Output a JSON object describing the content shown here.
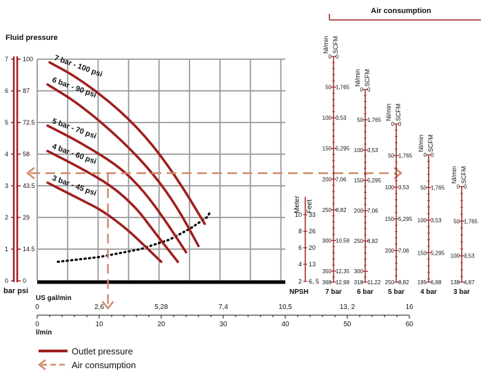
{
  "colors": {
    "curve": "#a01e1e",
    "air": "#d08a6e",
    "text": "#111111",
    "grid": "#9a9a9a",
    "npsh": "#000000"
  },
  "header": {
    "air_consumption": "Air consumption",
    "fluid_pressure": "Fluid pressure"
  },
  "axes": {
    "bar_psi": "bar psi",
    "us_gal_label": "US gal/min",
    "lmin_label": "l/min",
    "npsh": "NPSH",
    "meter": "Meter",
    "feet": "Feet"
  },
  "legend": {
    "outlet": "Outlet pressure",
    "air": "Air consumption"
  },
  "chart_data": {
    "type": "line",
    "title": "Fluid pressure",
    "xlabel": "l/min",
    "x_secondary_label": "US gal/min",
    "ylabel": "bar psi",
    "xlim": [
      0,
      60
    ],
    "ylim_bar": [
      0,
      7
    ],
    "x_ticks_lmin": [
      "0",
      "10",
      "20",
      "30",
      "40",
      "50",
      "60"
    ],
    "x_ticks_usgal": [
      "0",
      "2,6",
      "5,28",
      "7,4",
      "10,5",
      "13, 2",
      "16"
    ],
    "y_ticks_bar": [
      "0",
      "1",
      "2",
      "3",
      "4",
      "5",
      "6",
      "7"
    ],
    "y_ticks_psi": [
      "0",
      "14.5",
      "29",
      "43.5",
      "58",
      "72.5",
      "87",
      "100"
    ],
    "series": [
      {
        "name": "7 bar - 100 psi",
        "x": [
          3,
          10,
          20,
          28,
          35,
          40.5
        ],
        "y": [
          6.9,
          6.4,
          5.4,
          4.3,
          3.0,
          1.8
        ]
      },
      {
        "name": "6 bar - 90 psi",
        "x": [
          2.5,
          10,
          20,
          28,
          34,
          39
        ],
        "y": [
          6.2,
          5.6,
          4.5,
          3.4,
          2.3,
          1.1
        ]
      },
      {
        "name": "5 bar - 70 psi",
        "x": [
          2.5,
          10,
          20,
          26,
          31,
          36
        ],
        "y": [
          4.9,
          4.4,
          3.6,
          2.8,
          1.9,
          0.9
        ]
      },
      {
        "name": "4 bar - 60 psi",
        "x": [
          2.5,
          10,
          18,
          24,
          28,
          34
        ],
        "y": [
          4.1,
          3.6,
          3.0,
          2.3,
          1.6,
          0.6
        ]
      },
      {
        "name": "3 bar - 45 psi",
        "x": [
          2.5,
          10,
          16,
          22,
          26,
          30
        ],
        "y": [
          3.1,
          2.6,
          2.2,
          1.6,
          1.1,
          0.6
        ]
      }
    ],
    "npsh_curve": {
      "name": "NPSH",
      "x": [
        5,
        15,
        25,
        32,
        37,
        41,
        42
      ],
      "y": [
        0.6,
        0.75,
        1.0,
        1.3,
        1.65,
        2.0,
        2.2
      ]
    },
    "air_arrow": {
      "from_y_bar": 3.4,
      "down_to_x_lmin": 17.1,
      "label": "Air consumption"
    },
    "npsh_axis": {
      "meter": [
        "2",
        "4",
        "6",
        "8",
        "10"
      ],
      "feet": [
        "6, 5",
        "13",
        "20",
        "26",
        "33"
      ]
    },
    "air_scales": [
      {
        "label": "7 bar",
        "nl": [
          "0",
          "50",
          "100",
          "150",
          "200",
          "250",
          "300",
          "350",
          "368"
        ],
        "scfm": [
          "0",
          "1,765",
          "3,53",
          "5,295",
          "7,06",
          "8,82",
          "10,58",
          "12,35",
          "12,98"
        ]
      },
      {
        "label": "6 bar",
        "nl": [
          "0",
          "50",
          "100",
          "150",
          "200",
          "250",
          "300",
          "318"
        ],
        "scfm": [
          "0",
          "1,765",
          "3,53",
          "5,295",
          "7,06",
          "8,82",
          "",
          "11,22"
        ]
      },
      {
        "label": "5 bar",
        "nl": [
          "0",
          "50",
          "100",
          "150",
          "200",
          "250"
        ],
        "scfm": [
          "0",
          "1,765",
          "3,53",
          "5,295",
          "7,06",
          "8,82"
        ]
      },
      {
        "label": "4 bar",
        "nl": [
          "0",
          "50",
          "100",
          "150",
          "195"
        ],
        "scfm": [
          "0",
          "1,765",
          "3,53",
          "5,295",
          "6,88"
        ]
      },
      {
        "label": "3 bar",
        "nl": [
          "0",
          "50",
          "100",
          "138"
        ],
        "scfm": [
          "0",
          "1,765",
          "3,53",
          "4,87"
        ]
      }
    ],
    "air_unit_nl": "Nl/min",
    "air_unit_scfm": "SCFM",
    "grid": true,
    "legend_position": "bottom-left"
  }
}
